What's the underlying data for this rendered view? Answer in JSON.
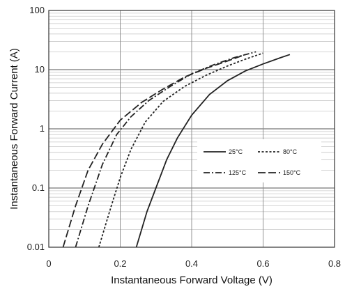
{
  "chart_data": {
    "type": "line",
    "xlabel": "Instantaneous Forward Voltage (V)",
    "ylabel": "Instantaneous Forward Current (A)",
    "x_scale": "linear",
    "y_scale": "log",
    "xlim": [
      0,
      0.8
    ],
    "ylim": [
      0.01,
      100
    ],
    "x_ticks": [
      "0",
      "0.2",
      "0.4",
      "0.6",
      "0.8"
    ],
    "y_ticks": [
      "0.01",
      "0.1",
      "1",
      "10",
      "100"
    ],
    "grid": true,
    "legend_position": "lower-right inside",
    "series": [
      {
        "name": "25°C",
        "line_style": "solid",
        "points": [
          [
            0.245,
            0.01
          ],
          [
            0.275,
            0.04
          ],
          [
            0.3,
            0.1
          ],
          [
            0.33,
            0.3
          ],
          [
            0.36,
            0.7
          ],
          [
            0.4,
            1.7
          ],
          [
            0.45,
            3.8
          ],
          [
            0.5,
            6.5
          ],
          [
            0.55,
            9.5
          ],
          [
            0.6,
            12.5
          ],
          [
            0.65,
            16
          ],
          [
            0.675,
            18
          ]
        ]
      },
      {
        "name": "80°C",
        "line_style": "short-dash",
        "points": [
          [
            0.14,
            0.01
          ],
          [
            0.175,
            0.05
          ],
          [
            0.2,
            0.15
          ],
          [
            0.23,
            0.45
          ],
          [
            0.27,
            1.3
          ],
          [
            0.32,
            2.9
          ],
          [
            0.38,
            5.2
          ],
          [
            0.44,
            8
          ],
          [
            0.5,
            11.5
          ],
          [
            0.55,
            15
          ],
          [
            0.6,
            19
          ]
        ]
      },
      {
        "name": "125°C",
        "line_style": "dash-dot",
        "points": [
          [
            0.075,
            0.01
          ],
          [
            0.11,
            0.05
          ],
          [
            0.15,
            0.25
          ],
          [
            0.19,
            0.8
          ],
          [
            0.23,
            1.6
          ],
          [
            0.28,
            3
          ],
          [
            0.34,
            5.2
          ],
          [
            0.4,
            8.5
          ],
          [
            0.46,
            12
          ],
          [
            0.52,
            16
          ],
          [
            0.58,
            20
          ]
        ]
      },
      {
        "name": "150°C",
        "line_style": "long-dash",
        "points": [
          [
            0.04,
            0.01
          ],
          [
            0.075,
            0.05
          ],
          [
            0.11,
            0.2
          ],
          [
            0.15,
            0.55
          ],
          [
            0.2,
            1.4
          ],
          [
            0.26,
            2.8
          ],
          [
            0.32,
            4.7
          ],
          [
            0.38,
            7.5
          ],
          [
            0.44,
            10.5
          ],
          [
            0.5,
            14
          ],
          [
            0.55,
            18
          ]
        ]
      }
    ]
  }
}
